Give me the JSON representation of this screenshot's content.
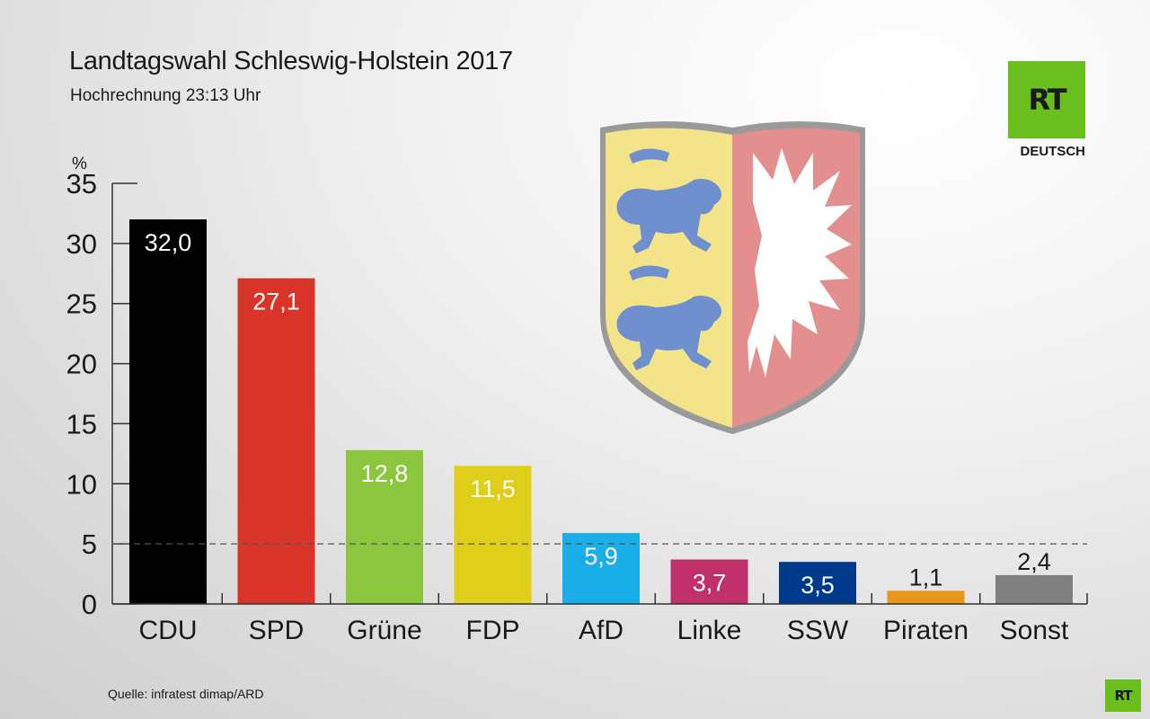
{
  "header": {
    "title": "Landtagswahl Schleswig-Holstein 2017",
    "subtitle": "Hochrechnung 23:13 Uhr"
  },
  "branding": {
    "logo_text": "RT",
    "logo_sub": "DEUTSCH",
    "logo_color": "#6abf1e"
  },
  "footer": {
    "source": "Quelle: infratest dimap/ARD"
  },
  "crest": {
    "icon": "schleswig-holstein-coat-of-arms-icon"
  },
  "chart_data": {
    "type": "bar",
    "title": "Landtagswahl Schleswig-Holstein 2017",
    "subtitle": "Hochrechnung 23:13 Uhr",
    "ylabel": "%",
    "xlabel": "",
    "ylim": [
      0,
      35
    ],
    "yticks": [
      0,
      5,
      10,
      15,
      20,
      25,
      30,
      35
    ],
    "threshold": 5,
    "categories": [
      "CDU",
      "SPD",
      "Grüne",
      "FDP",
      "AfD",
      "Linke",
      "SSW",
      "Piraten",
      "Sonst"
    ],
    "values": [
      32.0,
      27.1,
      12.8,
      11.5,
      5.9,
      3.7,
      3.5,
      1.1,
      2.4
    ],
    "labels": [
      "32,0",
      "27,1",
      "12,8",
      "11,5",
      "5,9",
      "3,7",
      "3,5",
      "1,1",
      "2,4"
    ],
    "colors": [
      "#000000",
      "#d8342a",
      "#8cc63f",
      "#e0cf1a",
      "#1aaee8",
      "#c0306a",
      "#003a8c",
      "#e8971a",
      "#808080"
    ],
    "grid": false
  }
}
